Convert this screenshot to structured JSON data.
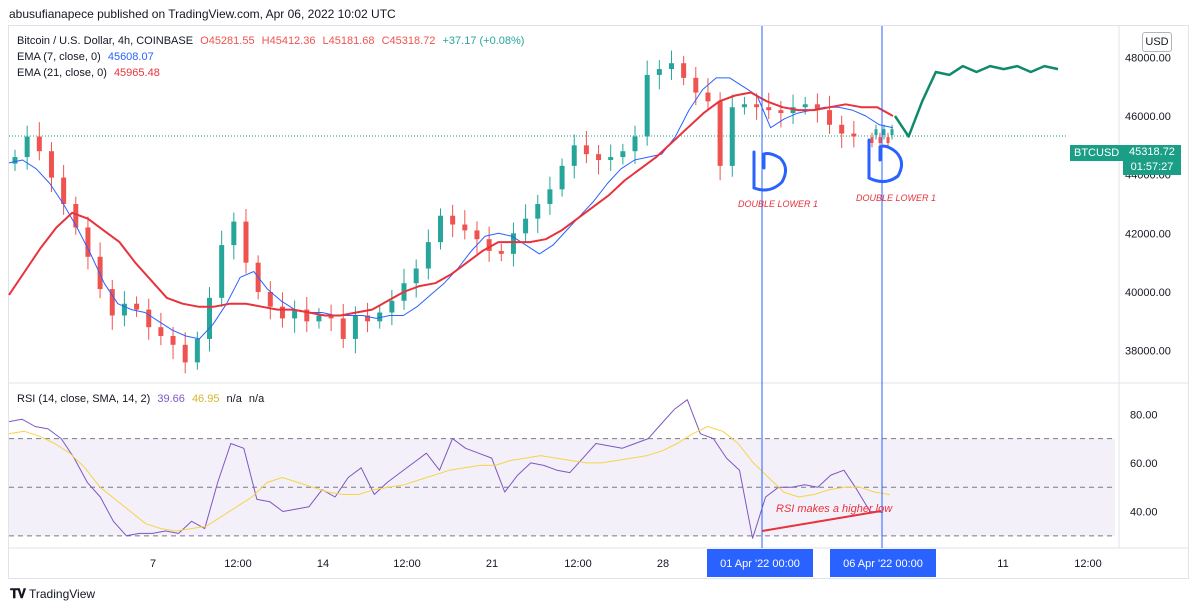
{
  "header": {
    "published": "abusufianapece published on TradingView.com, Apr 06, 2022 10:02 UTC"
  },
  "legend": {
    "symbol": "Bitcoin / U.S. Dollar, 4h, COINBASE",
    "ohlc": {
      "o": "O45281.55",
      "h": "H45412.36",
      "l": "L45181.68",
      "c": "C45318.72",
      "chg": "+37.17 (+0.08%)"
    },
    "ema7_label": "EMA (7, close, 0)",
    "ema7_value": "45608.07",
    "ema21_label": "EMA (21, close, 0)",
    "ema21_value": "45965.48",
    "rsi_label": "RSI (14, close, SMA, 14, 2)",
    "rsi_value": "39.66",
    "rsi_sma": "46.95",
    "rsi_na1": "n/a",
    "rsi_na2": "n/a"
  },
  "price_tag": {
    "symbol": "BTCUSD",
    "price": "45318.72",
    "countdown": "01:57:27"
  },
  "currency": "USD",
  "annotations": {
    "left": "DOUBLE LOWER 1",
    "right": "DOUBLE LOWER 1",
    "rsi": "RSI makes a higher low"
  },
  "highlighted_dates": [
    "01 Apr '22   00:00",
    "06 Apr '22   00:00"
  ],
  "footer": {
    "brand": "TradingView"
  },
  "colors": {
    "up": "#26a69a",
    "down": "#ef5350",
    "ema7": "#2962ff",
    "ema21": "#e8323c",
    "rsi": "#7e57c2",
    "rsi_sma": "#f7d34b",
    "marker": "#2962ff",
    "projection": "#0f8a6a"
  },
  "chart_data": [
    {
      "type": "candlestick",
      "title": "Bitcoin / U.S. Dollar, 4h, COINBASE",
      "ylim": [
        37000,
        49000
      ],
      "y_ticks": [
        "48000.00",
        "46000.00",
        "44000.00",
        "42000.00",
        "40000.00",
        "38000.00"
      ],
      "x_ticks": [
        "7",
        "12:00",
        "14",
        "12:00",
        "21",
        "12:00",
        "28",
        "11",
        "12:00"
      ],
      "price_path": [
        44600,
        45300,
        44800,
        43900,
        43000,
        42200,
        41200,
        40100,
        39200,
        39600,
        39400,
        38800,
        38500,
        38200,
        37600,
        38400,
        39800,
        41600,
        42400,
        41000,
        40000,
        39500,
        39100,
        39400,
        39000,
        39200,
        39100,
        38400,
        39200,
        39000,
        39300,
        39700,
        40300,
        40800,
        41700,
        42600,
        42300,
        42100,
        41800,
        41400,
        41300,
        42000,
        42500,
        43000,
        43500,
        44300,
        45000,
        44700,
        44500,
        44600,
        44800,
        45300,
        47400,
        47600,
        47800,
        47300,
        46800,
        46500,
        44300,
        46300,
        46400,
        46300,
        46200,
        46100,
        46300,
        46400,
        46200,
        45700,
        45400,
        45300
      ],
      "ema7": [
        44400,
        44500,
        44200,
        43700,
        43000,
        42200,
        41300,
        40300,
        39600,
        39400,
        39300,
        39000,
        38700,
        38500,
        38400,
        38900,
        39600,
        40500,
        40700,
        40100,
        39700,
        39400,
        39300,
        39300,
        39200,
        39200,
        39200,
        39100,
        39200,
        39200,
        39500,
        39900,
        40300,
        40800,
        41400,
        41900,
        42000,
        41900,
        41600,
        41300,
        41600,
        42100,
        42600,
        43100,
        43700,
        44200,
        44500,
        44600,
        44700,
        45300,
        46200,
        46900,
        47300,
        47300,
        47000,
        46700,
        45600,
        45900,
        46100,
        46200,
        46300,
        46300,
        46200,
        46000,
        45700,
        45600
      ],
      "ema21": [
        39900,
        40700,
        41500,
        42200,
        42700,
        42500,
        42100,
        41700,
        41000,
        40400,
        39800,
        39600,
        39500,
        39500,
        39600,
        39600,
        39500,
        39400,
        39400,
        39300,
        39200,
        39200,
        39300,
        39400,
        39700,
        40000,
        40200,
        40300,
        40600,
        41000,
        41400,
        41700,
        41700,
        41700,
        41800,
        42100,
        42500,
        42900,
        43300,
        43800,
        44200,
        44600,
        45100,
        45600,
        46100,
        46500,
        46700,
        46800,
        46500,
        46300,
        46200,
        46200,
        46300,
        46400,
        46300,
        46300,
        46000
      ],
      "projection": [
        46000,
        45300,
        46500,
        47500,
        47400,
        47700,
        47500,
        47700,
        47600,
        47700,
        47500,
        47700,
        47600
      ],
      "last_price": 45318.72
    },
    {
      "type": "line",
      "title": "RSI (14, close, SMA, 14, 2)",
      "ylim": [
        25,
        90
      ],
      "y_ticks": [
        "80.00",
        "60.00",
        "40.00"
      ],
      "bands": [
        70,
        50,
        30
      ],
      "rsi": [
        77,
        78,
        75,
        74,
        70,
        62,
        52,
        46,
        36,
        30,
        31,
        31,
        32,
        31,
        36,
        33,
        52,
        68,
        66,
        45,
        44,
        40,
        41,
        42,
        49,
        46,
        54,
        58,
        47,
        52,
        56,
        60,
        64,
        57,
        70,
        66,
        64,
        62,
        48,
        55,
        60,
        59,
        57,
        56,
        62,
        68,
        67,
        66,
        68,
        70,
        76,
        82,
        86,
        72,
        70,
        62,
        57,
        29,
        46,
        50,
        50,
        51,
        50,
        55,
        57,
        49,
        40,
        39.66
      ],
      "sma": [
        72,
        73,
        71,
        68,
        64,
        58,
        50,
        45,
        40,
        35,
        33,
        32,
        33,
        34,
        38,
        42,
        46,
        52,
        54,
        52,
        50,
        48,
        47,
        47,
        49,
        50,
        51,
        53,
        55,
        57,
        58,
        59,
        59,
        61,
        62,
        63,
        62,
        61,
        60,
        60,
        61,
        62,
        63,
        65,
        68,
        72,
        75,
        73,
        68,
        60,
        54,
        48,
        46,
        47,
        49,
        50,
        50,
        48,
        46.95
      ]
    }
  ]
}
